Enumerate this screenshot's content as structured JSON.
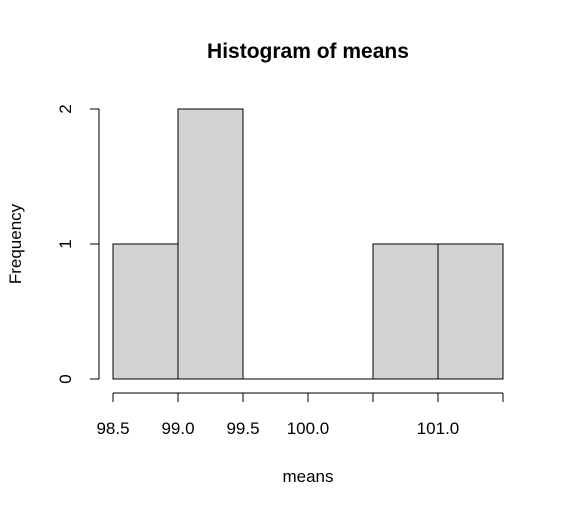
{
  "chart_data": {
    "type": "bar",
    "subtype": "histogram",
    "title": "Histogram of means",
    "xlabel": "means",
    "ylabel": "Frequency",
    "bins": [
      {
        "start": 98.5,
        "end": 99.0,
        "count": 1
      },
      {
        "start": 99.0,
        "end": 99.5,
        "count": 2
      },
      {
        "start": 99.5,
        "end": 100.0,
        "count": 0
      },
      {
        "start": 100.0,
        "end": 100.5,
        "count": 0
      },
      {
        "start": 100.5,
        "end": 101.0,
        "count": 1
      },
      {
        "start": 101.0,
        "end": 101.5,
        "count": 1
      }
    ],
    "xlim": [
      98.5,
      101.5
    ],
    "ylim": [
      0,
      2
    ],
    "x_ticks": [
      98.5,
      99.0,
      99.5,
      100.0,
      100.5,
      101.0,
      101.5
    ],
    "x_tick_labels": [
      "98.5",
      "99.0",
      "99.5",
      "100.0",
      "",
      "101.0",
      ""
    ],
    "y_ticks": [
      0,
      1,
      2
    ],
    "y_tick_labels": [
      "0",
      "1",
      "2"
    ],
    "bar_fill": "#d3d3d3",
    "bar_stroke": "#000000",
    "grid": false,
    "legend": "none"
  }
}
